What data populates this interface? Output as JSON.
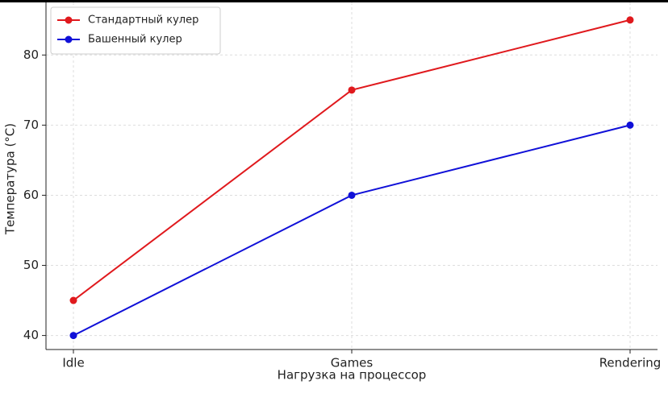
{
  "chart_data": {
    "type": "line",
    "x_label": "Нагрузка на процессор",
    "y_label": "Температура (°C)",
    "categories": [
      "Idle",
      "Games",
      "Rendering"
    ],
    "series": [
      {
        "name": "Стандартный кулер",
        "color": "#e0191d",
        "values": [
          45,
          75,
          85
        ]
      },
      {
        "name": "Башенный кулер",
        "color": "#1010d8",
        "values": [
          40,
          60,
          70
        ]
      }
    ],
    "ylim": [
      38,
      87.5
    ],
    "yticks": [
      40,
      50,
      60,
      70,
      80
    ],
    "grid": true,
    "legend": "upper left"
  }
}
